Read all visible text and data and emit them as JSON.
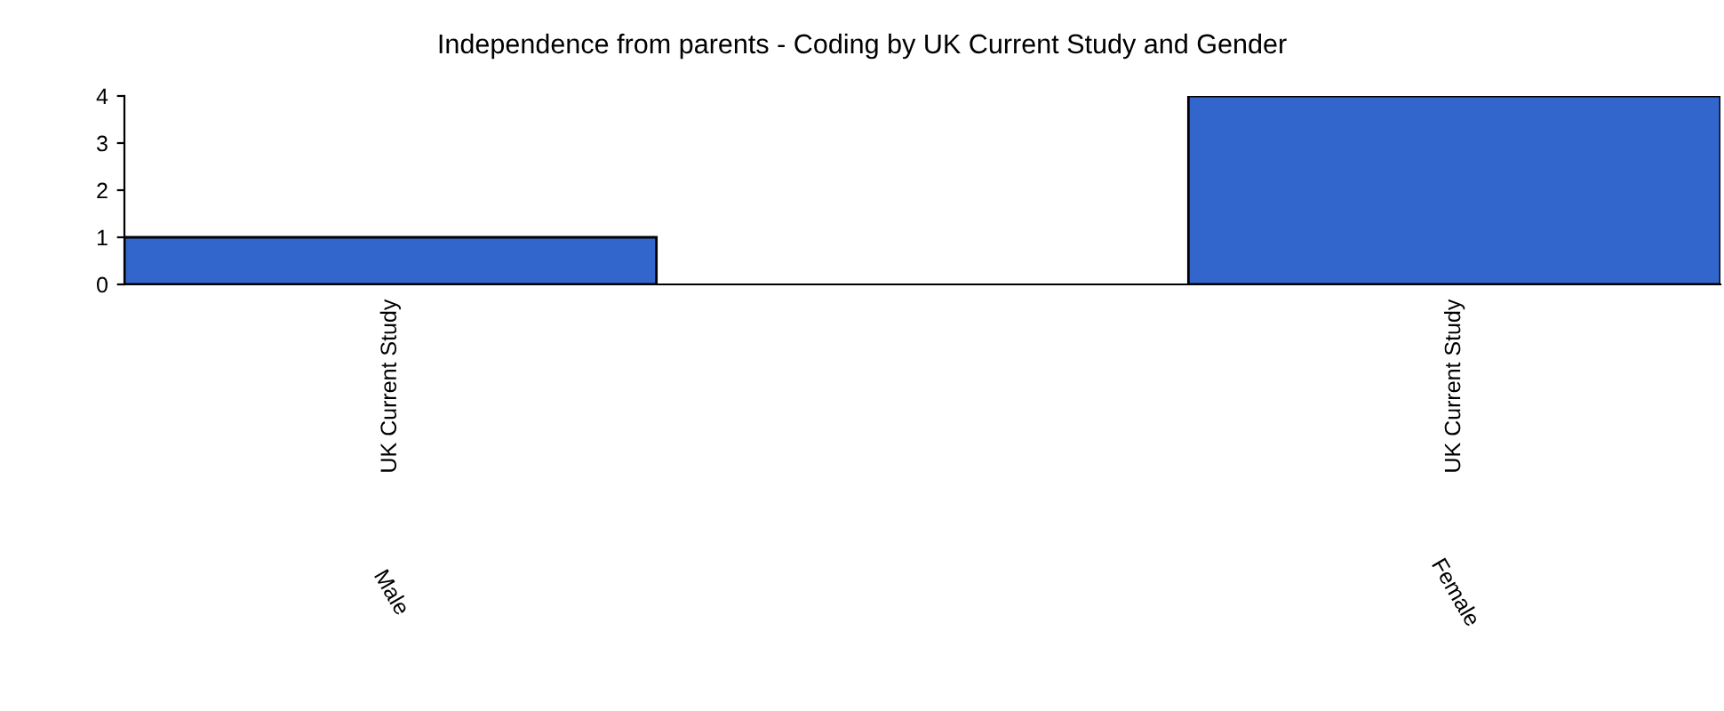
{
  "chart_data": {
    "type": "bar",
    "title": "Independence from parents - Coding by UK Current Study and Gender",
    "categories": [
      "UK Current Study",
      "UK Current Study"
    ],
    "values": [
      1,
      4
    ],
    "color": "#3366cc",
    "ylim": [
      0,
      4
    ],
    "yticks": [
      0,
      1,
      2,
      3,
      4
    ],
    "grid": false,
    "legend": false,
    "annotations": [
      "Male",
      "Female"
    ]
  }
}
